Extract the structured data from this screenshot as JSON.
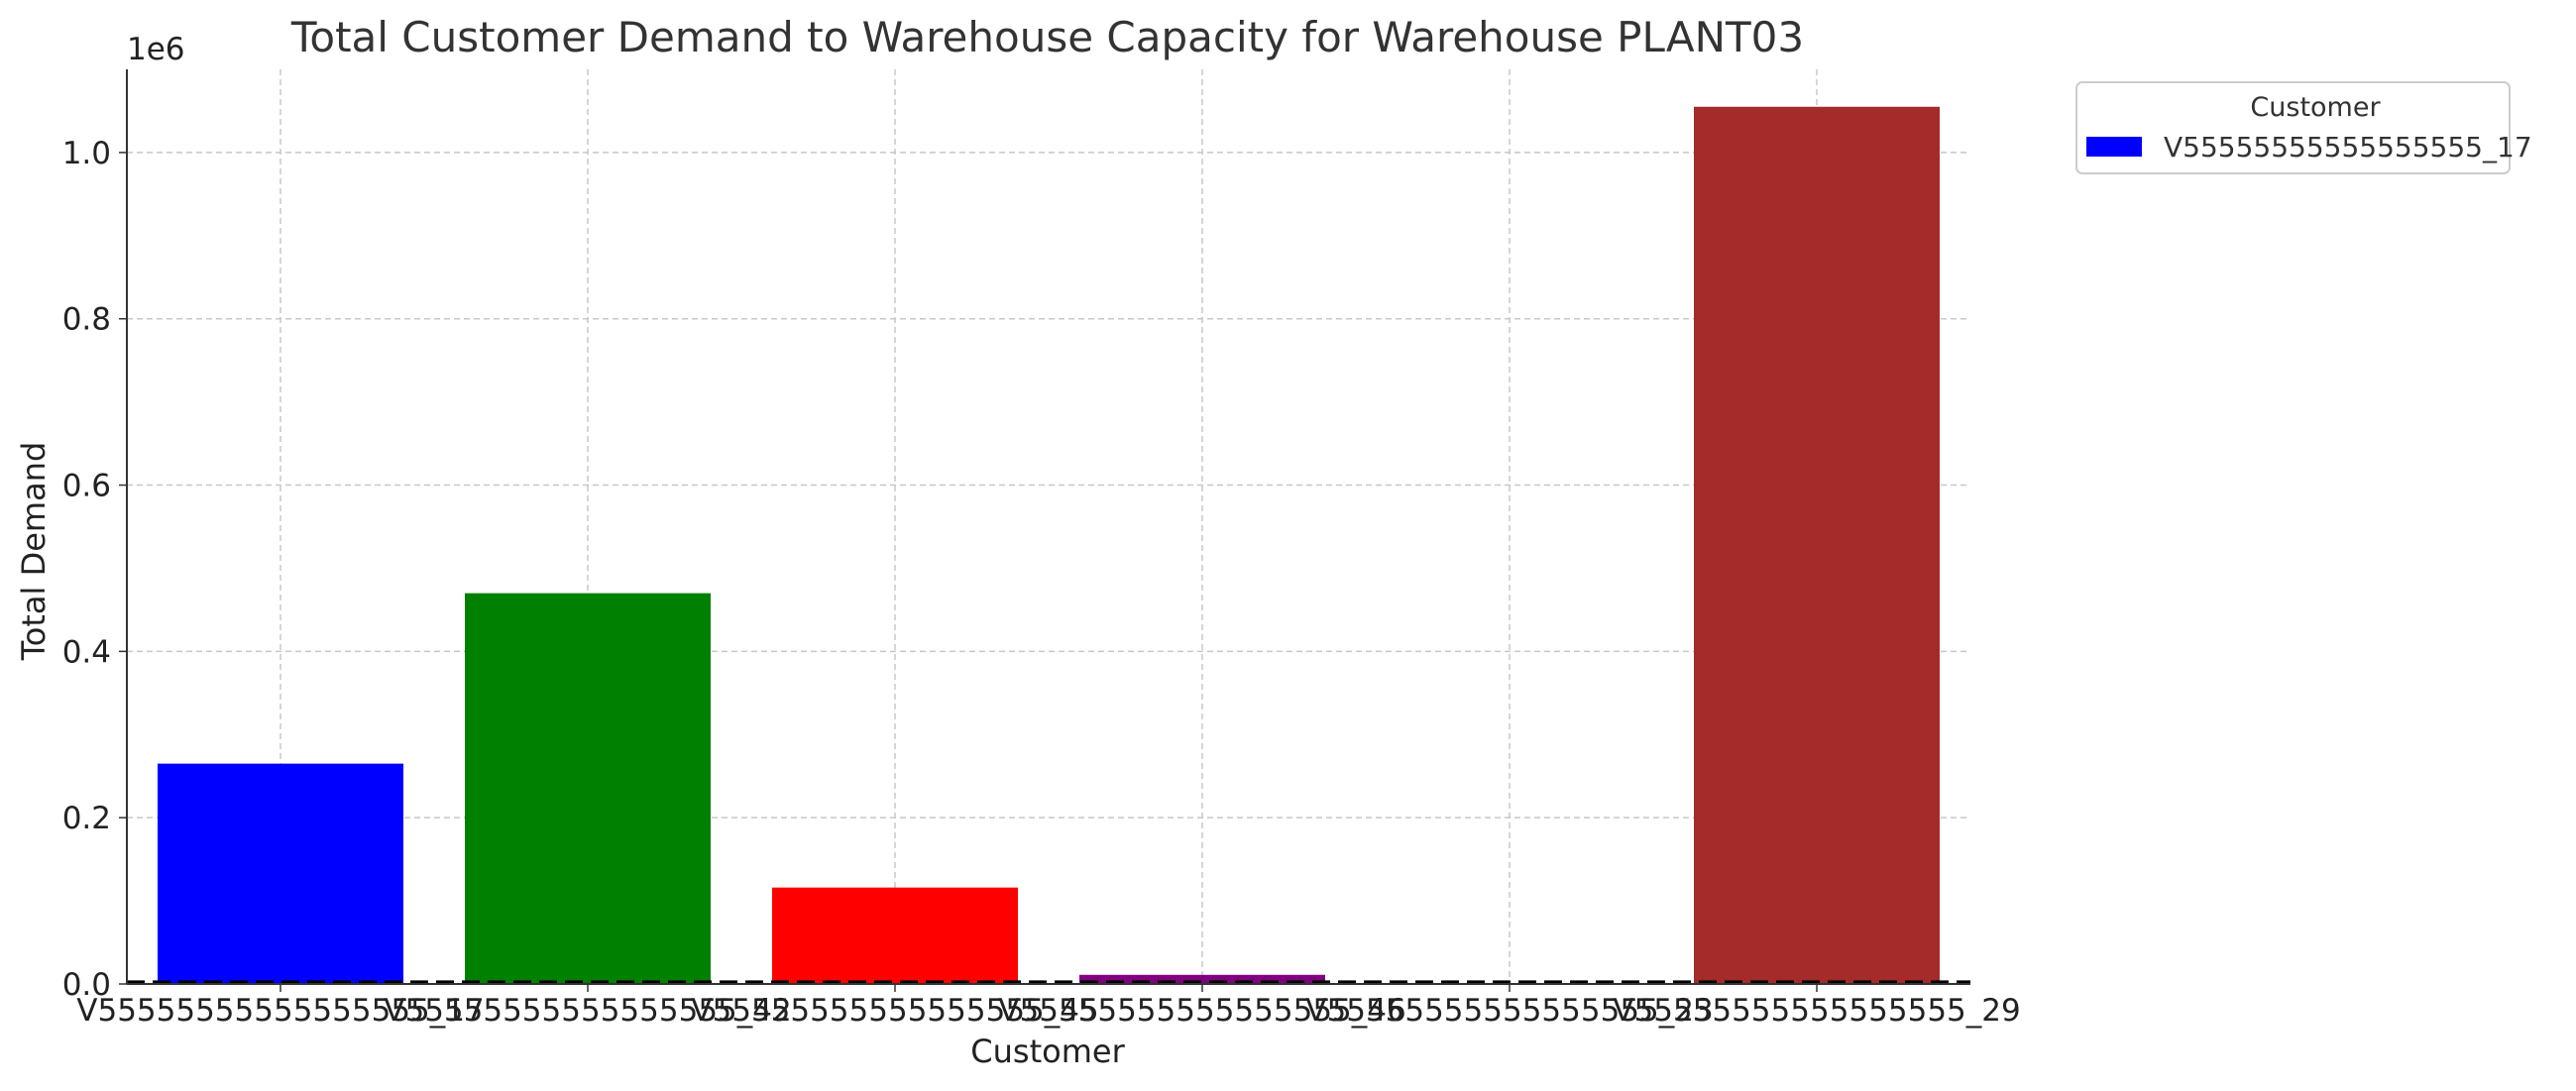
{
  "chart_data": {
    "type": "bar",
    "title": "Total Customer Demand to Warehouse Capacity for Warehouse PLANT03",
    "xlabel": "Customer",
    "ylabel": "Total Demand",
    "y_offset_label": "1e6",
    "categories": [
      "V55555555555555555_17",
      "V55555555555555555_42",
      "V55555555555555555_45",
      "V55555555555555555_46",
      "V55555555555555555_23",
      "V55555555555555555_29"
    ],
    "values": [
      265000,
      470000,
      116000,
      11000,
      0,
      1055000
    ],
    "colors": [
      "#0000ff",
      "#008000",
      "#ff0000",
      "#800080",
      "#ffa500",
      "#a52a2a"
    ],
    "capacity_line": 2000,
    "ylim": [
      0,
      1100000
    ],
    "yticks": [
      0,
      200000,
      400000,
      600000,
      800000,
      1000000
    ],
    "ytick_labels": [
      "0.0",
      "0.2",
      "0.4",
      "0.6",
      "0.8",
      "1.0"
    ],
    "grid": true,
    "legend": {
      "title": "Customer",
      "placement": "outside-top-right",
      "entries": [
        {
          "label": "V55555555555555555_17",
          "color": "#0000ff"
        }
      ]
    }
  }
}
